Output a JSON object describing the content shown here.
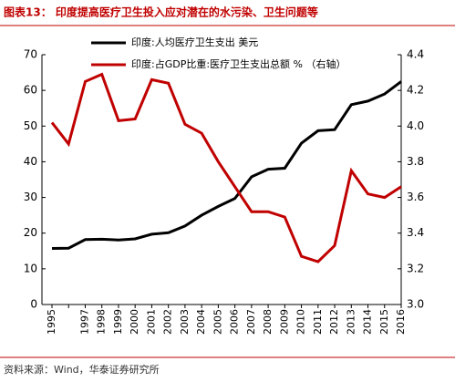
{
  "chart_data": {
    "type": "line",
    "title": "图表13： 印度提高医疗卫生投入应对潜在的水污染、卫生问题等",
    "source": "资料来源：Wind，华泰证券研究所",
    "categories": [
      "1995",
      null,
      "1997",
      "1998",
      "1999",
      "2000",
      "2001",
      "2002",
      "2003",
      "2004",
      "2005",
      "2006",
      "2007",
      "2008",
      "2009",
      "2010",
      "2011",
      "2012",
      "2013",
      "2014",
      "2015",
      "2016"
    ],
    "series": [
      {
        "name": "印度:人均医疗卫生支出 美元",
        "color": "#000000",
        "axis": "y",
        "values": [
          15.7,
          15.8,
          18.2,
          18.3,
          18.1,
          18.4,
          19.7,
          20.1,
          22,
          25,
          27.5,
          29.7,
          35.8,
          37.9,
          38.2,
          45.2,
          48.7,
          49,
          56,
          57,
          59,
          62.5
        ]
      },
      {
        "name": "印度:占GDP比重:医疗卫生支出总额 % （右轴）",
        "color": "#c00000",
        "axis": "y2",
        "values": [
          4.02,
          3.9,
          4.25,
          4.29,
          4.03,
          4.04,
          4.26,
          4.24,
          4.01,
          3.96,
          3.8,
          3.66,
          3.52,
          3.52,
          3.49,
          3.27,
          3.24,
          3.33,
          3.75,
          3.62,
          3.6,
          3.66
        ]
      }
    ],
    "ylim": [
      0,
      70
    ],
    "yticks": [
      0,
      10,
      20,
      30,
      40,
      50,
      60,
      70
    ],
    "y2lim": [
      3.0,
      4.4
    ],
    "y2ticks": [
      {
        "value": 3.0,
        "label": "3.0"
      },
      3.2,
      3.4,
      3.6,
      3.8,
      {
        "value": 4.0,
        "label": "4.0"
      },
      4.2,
      4.4
    ]
  }
}
